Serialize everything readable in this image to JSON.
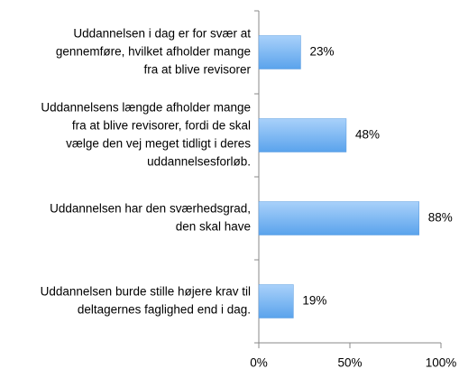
{
  "chart_data": {
    "type": "bar",
    "orientation": "horizontal",
    "categories": [
      [
        "Uddannelsen i dag er for svær at",
        "gennemføre, hvilket afholder mange",
        "fra at blive revisorer"
      ],
      [
        "Uddannelsens længde afholder mange",
        "fra at blive revisorer, fordi de skal",
        "vælge den vej meget tidligt i deres",
        "uddannelsesforløb."
      ],
      [
        "Uddannelsen har den sværhedsgrad,",
        "den skal have"
      ],
      [
        "Uddannelsen burde stille højere krav til",
        "deltagernes faglighed end i dag."
      ]
    ],
    "values": [
      23,
      48,
      88,
      19
    ],
    "value_labels": [
      "23%",
      "48%",
      "88%",
      "19%"
    ],
    "color": "#6aaef0",
    "xlim": [
      0,
      100
    ],
    "xticks": [
      {
        "value": 0,
        "label": "0%"
      },
      {
        "value": 50,
        "label": "50%"
      },
      {
        "value": 100,
        "label": "100%"
      }
    ]
  }
}
